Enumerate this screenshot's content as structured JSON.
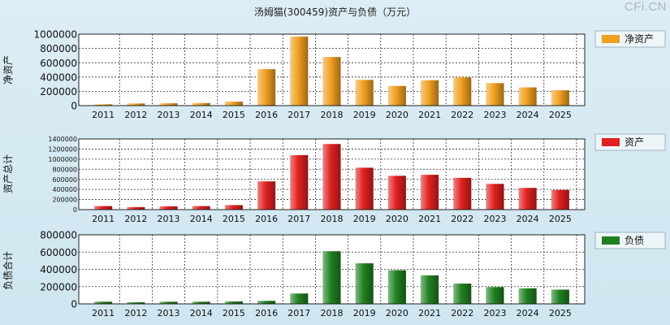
{
  "title": "汤姆猫(300459)资产与负债（万元）",
  "watermark": "CFi.CN",
  "chart_data": [
    {
      "type": "bar",
      "ylabel": "净资产",
      "legend": "净资产",
      "legend_position": "top-right",
      "color": "#f0a020",
      "grid": true,
      "categories": [
        "2011",
        "2012",
        "2013",
        "2014",
        "2015",
        "2016",
        "2017",
        "2018",
        "2019",
        "2020",
        "2021",
        "2022",
        "2023",
        "2024",
        "2025"
      ],
      "values": [
        18000,
        30000,
        33000,
        36000,
        55000,
        510000,
        965000,
        680000,
        360000,
        275000,
        355000,
        395000,
        315000,
        255000,
        215000
      ],
      "ylim": [
        0,
        1000000
      ],
      "yticks": [
        "0",
        "200000",
        "400000",
        "600000",
        "800000",
        "1000000"
      ]
    },
    {
      "type": "bar",
      "ylabel": "资产总计",
      "legend": "资产",
      "legend_position": "top-right",
      "color": "#e02020",
      "grid": true,
      "categories": [
        "2011",
        "2012",
        "2013",
        "2014",
        "2015",
        "2016",
        "2017",
        "2018",
        "2019",
        "2020",
        "2021",
        "2022",
        "2023",
        "2024",
        "2025"
      ],
      "values": [
        70000,
        50000,
        65000,
        70000,
        90000,
        560000,
        1080000,
        1300000,
        830000,
        670000,
        690000,
        630000,
        510000,
        430000,
        390000
      ],
      "ylim": [
        0,
        1400000
      ],
      "yticks": [
        "0",
        "200000",
        "400000",
        "600000",
        "800000",
        "1000000",
        "1200000",
        "1400000"
      ]
    },
    {
      "type": "bar",
      "ylabel": "负债合计",
      "legend": "负债",
      "legend_position": "top-right",
      "color": "#208020",
      "grid": true,
      "categories": [
        "2011",
        "2012",
        "2013",
        "2014",
        "2015",
        "2016",
        "2017",
        "2018",
        "2019",
        "2020",
        "2021",
        "2022",
        "2023",
        "2024",
        "2025"
      ],
      "values": [
        25000,
        18000,
        25000,
        25000,
        28000,
        35000,
        120000,
        610000,
        470000,
        390000,
        330000,
        235000,
        195000,
        180000,
        165000
      ],
      "ylim": [
        0,
        800000
      ],
      "yticks": [
        "0",
        "200000",
        "400000",
        "600000",
        "800000"
      ]
    }
  ]
}
